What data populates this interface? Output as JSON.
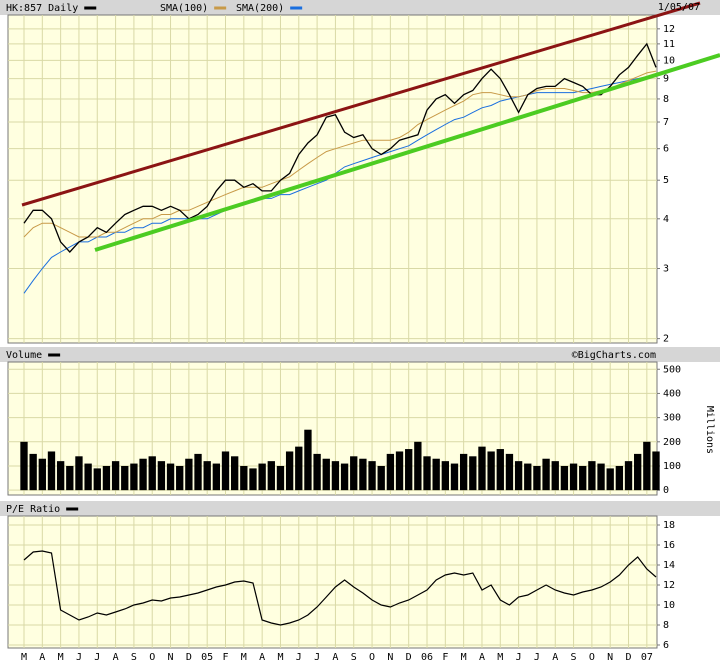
{
  "chart_data": [
    {
      "type": "line",
      "log_scale": true,
      "grid": true,
      "date_label": "1/05/07",
      "ylim": [
        1.95,
        13
      ],
      "yticks": [
        2,
        3,
        4,
        5,
        6,
        7,
        8,
        9,
        10,
        11,
        12
      ],
      "series": [
        {
          "name": "HK:857 Daily",
          "color": "#000000",
          "values": [
            3.9,
            4.2,
            4.2,
            4.0,
            3.5,
            3.3,
            3.5,
            3.6,
            3.8,
            3.7,
            3.9,
            4.1,
            4.2,
            4.3,
            4.3,
            4.2,
            4.3,
            4.2,
            4.0,
            4.1,
            4.3,
            4.7,
            5.0,
            5.0,
            4.8,
            4.9,
            4.7,
            4.7,
            5.0,
            5.2,
            5.8,
            6.2,
            6.5,
            7.2,
            7.3,
            6.6,
            6.4,
            6.5,
            6.0,
            5.8,
            6.0,
            6.3,
            6.4,
            6.5,
            7.5,
            8.0,
            8.2,
            7.8,
            8.2,
            8.4,
            9.0,
            9.5,
            9.0,
            8.2,
            7.4,
            8.2,
            8.5,
            8.6,
            8.6,
            9.0,
            8.8,
            8.6,
            8.2,
            8.2,
            8.6,
            9.2,
            9.6,
            10.3,
            11.0,
            9.6
          ]
        },
        {
          "name": "SMA(100)",
          "color": "#c89a48",
          "values": [
            3.6,
            3.8,
            3.9,
            3.9,
            3.8,
            3.7,
            3.6,
            3.6,
            3.6,
            3.7,
            3.7,
            3.8,
            3.9,
            4.0,
            4.0,
            4.1,
            4.1,
            4.2,
            4.2,
            4.3,
            4.4,
            4.5,
            4.6,
            4.7,
            4.8,
            4.8,
            4.8,
            4.9,
            5.0,
            5.1,
            5.3,
            5.5,
            5.7,
            5.9,
            6.0,
            6.1,
            6.2,
            6.3,
            6.3,
            6.3,
            6.3,
            6.4,
            6.6,
            6.9,
            7.1,
            7.3,
            7.5,
            7.7,
            7.9,
            8.2,
            8.3,
            8.3,
            8.2,
            8.1,
            8.1,
            8.2,
            8.4,
            8.5,
            8.5,
            8.5,
            8.4,
            8.3,
            8.3,
            8.4,
            8.5,
            8.7,
            8.9,
            9.1,
            9.3,
            9.4
          ]
        },
        {
          "name": "SMA(200)",
          "color": "#1a6fdf",
          "values": [
            2.6,
            2.8,
            3.0,
            3.2,
            3.3,
            3.4,
            3.5,
            3.5,
            3.6,
            3.6,
            3.7,
            3.7,
            3.8,
            3.8,
            3.9,
            3.9,
            4.0,
            4.0,
            4.0,
            4.0,
            4.0,
            4.1,
            4.2,
            4.3,
            4.4,
            4.4,
            4.5,
            4.5,
            4.6,
            4.6,
            4.7,
            4.8,
            4.9,
            5.0,
            5.2,
            5.4,
            5.5,
            5.6,
            5.7,
            5.8,
            5.9,
            6.0,
            6.1,
            6.3,
            6.5,
            6.7,
            6.9,
            7.1,
            7.2,
            7.4,
            7.6,
            7.7,
            7.9,
            8.0,
            8.1,
            8.2,
            8.3,
            8.3,
            8.3,
            8.3,
            8.3,
            8.4,
            8.5,
            8.6,
            8.7,
            8.8,
            8.9,
            9.0,
            9.1,
            9.2
          ]
        }
      ]
    },
    {
      "type": "bar",
      "title": "Volume",
      "y_label": "Millions",
      "watermark": "©BigCharts.com",
      "grid": true,
      "color": "#000000",
      "ylim": [
        -20,
        530
      ],
      "yticks": [
        0,
        100,
        200,
        300,
        400,
        500
      ],
      "values": [
        200,
        150,
        130,
        160,
        120,
        100,
        140,
        110,
        90,
        100,
        120,
        100,
        110,
        130,
        140,
        120,
        110,
        100,
        130,
        150,
        120,
        110,
        160,
        140,
        100,
        90,
        110,
        120,
        100,
        160,
        180,
        250,
        150,
        130,
        120,
        110,
        140,
        130,
        120,
        100,
        150,
        160,
        170,
        200,
        140,
        130,
        120,
        110,
        150,
        140,
        180,
        160,
        170,
        150,
        120,
        110,
        100,
        130,
        120,
        100,
        110,
        100,
        120,
        110,
        90,
        100,
        120,
        150,
        200,
        160
      ]
    },
    {
      "type": "line",
      "title": "P/E Ratio",
      "grid": true,
      "color": "#000000",
      "ylim": [
        5.7,
        18.9
      ],
      "yticks": [
        6,
        8,
        10,
        12,
        14,
        16,
        18
      ],
      "categories": [
        "M",
        null,
        "A",
        null,
        "M",
        null,
        "J",
        null,
        "J",
        null,
        "A",
        null,
        "S",
        null,
        "O",
        null,
        "N",
        null,
        "D",
        null,
        "05",
        null,
        "F",
        null,
        "M",
        null,
        "A",
        null,
        "M",
        null,
        "J",
        null,
        "J",
        null,
        "A",
        null,
        "S",
        null,
        "O",
        null,
        "N",
        null,
        "D",
        null,
        "06",
        null,
        "F",
        null,
        "M",
        null,
        "A",
        null,
        "M",
        null,
        "J",
        null,
        "J",
        null,
        "A",
        null,
        "S",
        null,
        "O",
        null,
        "N",
        null,
        "D",
        null,
        "07",
        null
      ],
      "values": [
        14.5,
        15.3,
        15.4,
        15.2,
        9.5,
        9.0,
        8.5,
        8.8,
        9.2,
        9.0,
        9.3,
        9.6,
        10.0,
        10.2,
        10.5,
        10.4,
        10.7,
        10.8,
        11.0,
        11.2,
        11.5,
        11.8,
        12.0,
        12.3,
        12.4,
        12.2,
        8.5,
        8.2,
        8.0,
        8.2,
        8.5,
        9.0,
        9.8,
        10.8,
        11.8,
        12.5,
        11.8,
        11.2,
        10.5,
        10.0,
        9.8,
        10.2,
        10.5,
        11.0,
        11.5,
        12.5,
        13.0,
        13.2,
        13.0,
        13.2,
        11.5,
        12.0,
        10.5,
        10.0,
        10.8,
        11.0,
        11.5,
        12.0,
        11.5,
        11.2,
        11.0,
        11.3,
        11.5,
        11.8,
        12.3,
        13.0,
        14.0,
        14.8,
        13.6,
        12.8
      ]
    }
  ]
}
